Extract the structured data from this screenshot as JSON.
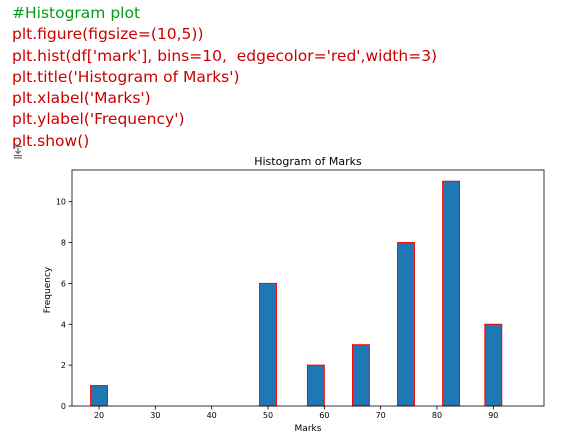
{
  "code_cell": {
    "lines": [
      {
        "text": "#Histogram plot",
        "kind": "comment"
      },
      {
        "text": "plt.figure(figsize=(10,5))",
        "kind": "code"
      },
      {
        "text": "plt.hist(df['mark'], bins=10,  edgecolor='red',width=3)",
        "kind": "code"
      },
      {
        "text": "plt.title('Histogram of Marks')",
        "kind": "code"
      },
      {
        "text": "plt.xlabel('Marks')",
        "kind": "code"
      },
      {
        "text": "plt.ylabel('Frequency')",
        "kind": "code"
      },
      {
        "text": "plt.show()",
        "kind": "code"
      }
    ]
  },
  "output": {
    "icon": "output-toggle-icon"
  },
  "chart_data": {
    "type": "bar",
    "title": "Histogram of Marks",
    "xlabel": "Marks",
    "ylabel": "Frequency",
    "x": [
      20,
      50,
      58.5,
      66.5,
      74.5,
      82.5,
      90
    ],
    "values": [
      1,
      6,
      2,
      3,
      8,
      11,
      4
    ],
    "bar_width": 3,
    "xlim": [
      15.2,
      99
    ],
    "ylim": [
      0,
      11.55
    ],
    "xticks": [
      20,
      30,
      40,
      50,
      60,
      70,
      80,
      90
    ],
    "yticks": [
      0,
      2,
      4,
      6,
      8,
      10
    ],
    "bar_color": "#1f77b4",
    "edge_color": "#ff0000",
    "grid": false
  }
}
